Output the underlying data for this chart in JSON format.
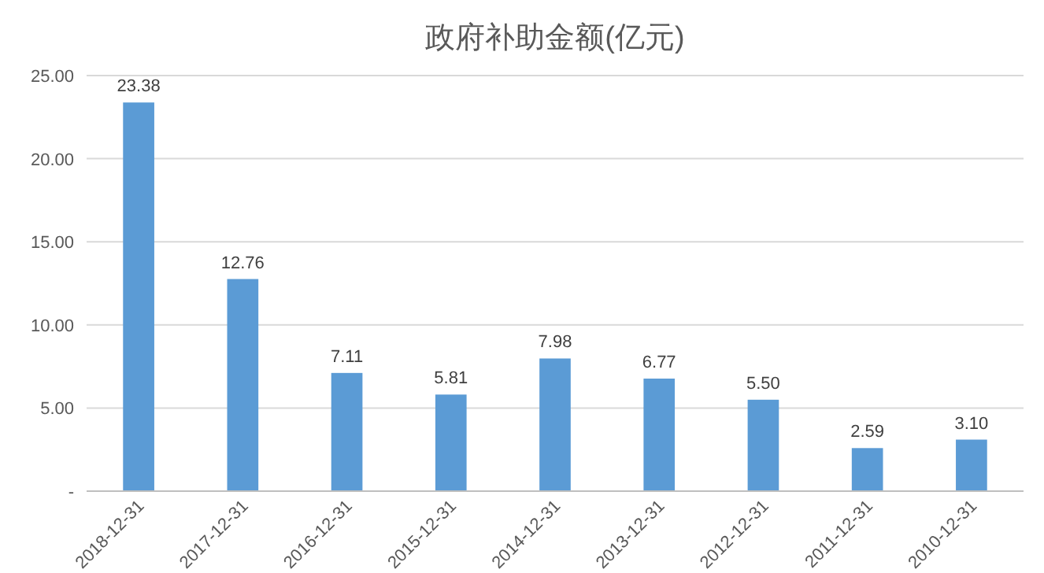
{
  "chart_data": {
    "type": "bar",
    "title": "政府补助金额(亿元)",
    "categories": [
      "2018-12-31",
      "2017-12-31",
      "2016-12-31",
      "2015-12-31",
      "2014-12-31",
      "2013-12-31",
      "2012-12-31",
      "2011-12-31",
      "2010-12-31"
    ],
    "values": [
      23.38,
      12.76,
      7.11,
      5.81,
      7.98,
      6.77,
      5.5,
      2.59,
      3.1
    ],
    "value_labels": [
      "23.38",
      "12.76",
      "7.11",
      "5.81",
      "7.98",
      "6.77",
      "5.50",
      "2.59",
      "3.10"
    ],
    "color": "#5b9bd5",
    "ylim": [
      0,
      25
    ],
    "yticks": [
      {
        "value": 0,
        "label": "-"
      },
      {
        "value": 5,
        "label": "5.00"
      },
      {
        "value": 10,
        "label": "10.00"
      },
      {
        "value": 15,
        "label": "15.00"
      },
      {
        "value": 20,
        "label": "20.00"
      },
      {
        "value": 25,
        "label": "25.00"
      }
    ],
    "grid": "y"
  }
}
